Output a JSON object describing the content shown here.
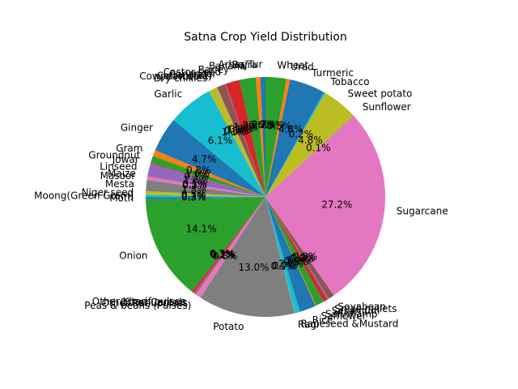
{
  "chart_data": {
    "type": "pie",
    "title": "Satna Crop Yield Distribution",
    "start_angle_deg": 90,
    "direction": "counterclockwise",
    "pct_format": "%1.1f%%",
    "slices": [
      {
        "label": "Arhar/Tur",
        "value": 0.7,
        "color": "#1f77b4"
      },
      {
        "label": "Bajra",
        "value": 0.6,
        "color": "#ff7f0e"
      },
      {
        "label": "Banana",
        "value": 2.2,
        "color": "#2ca02c"
      },
      {
        "label": "Barley",
        "value": 1.9,
        "color": "#d62728"
      },
      {
        "label": "Castor seed",
        "value": 0.1,
        "color": "#9467bd"
      },
      {
        "label": "Coriander",
        "value": 1.1,
        "color": "#8c564b"
      },
      {
        "label": "Cotton(lint)",
        "value": 0.05,
        "color": "#e377c2"
      },
      {
        "label": "Cowpea(Lobia)",
        "value": 0.05,
        "color": "#7f7f7f"
      },
      {
        "label": "Dry chillies",
        "value": 1.1,
        "color": "#bcbd22"
      },
      {
        "label": "Garlic",
        "value": 6.1,
        "color": "#17becf"
      },
      {
        "label": "Ginger",
        "value": 4.7,
        "color": "#1f77b4"
      },
      {
        "label": "Gram",
        "value": 0.8,
        "color": "#ff7f0e"
      },
      {
        "label": "Groundnut",
        "value": 1.0,
        "color": "#2ca02c"
      },
      {
        "label": "Jowar",
        "value": 0.1,
        "color": "#d62728"
      },
      {
        "label": "Linseed",
        "value": 1.6,
        "color": "#9467bd"
      },
      {
        "label": "Maize",
        "value": 0.1,
        "color": "#8c564b"
      },
      {
        "label": "Masoor",
        "value": 0.5,
        "color": "#e377c2"
      },
      {
        "label": "Mesta",
        "value": 1.5,
        "color": "#7f7f7f"
      },
      {
        "label": "Niger seed",
        "value": 0.5,
        "color": "#bcbd22"
      },
      {
        "label": "Moong(Green Gram)",
        "value": 0.3,
        "color": "#17becf"
      },
      {
        "label": "Moth",
        "value": 0.3,
        "color": "#1f77b4"
      },
      {
        "label": "Onion",
        "value": 14.1,
        "color": "#2ca02c"
      },
      {
        "label": "Other Kharif pulses",
        "value": 0.3,
        "color": "#d62728"
      },
      {
        "label": "Other Cereals",
        "value": 0.1,
        "color": "#9467bd"
      },
      {
        "label": "Other Rabi pulses",
        "value": 0.2,
        "color": "#8c564b"
      },
      {
        "label": "Peas & beans (Pulses)",
        "value": 0.8,
        "color": "#e377c2"
      },
      {
        "label": "Potato",
        "value": 13.0,
        "color": "#7f7f7f"
      },
      {
        "label": "Ragi",
        "value": 0.05,
        "color": "#bcbd22"
      },
      {
        "label": "Rapeseed &Mustard",
        "value": 0.7,
        "color": "#17becf"
      },
      {
        "label": "Rice",
        "value": 2.2,
        "color": "#1f77b4"
      },
      {
        "label": "Safflower",
        "value": 0.1,
        "color": "#ff7f0e"
      },
      {
        "label": "Sannhamp",
        "value": 1.1,
        "color": "#2ca02c"
      },
      {
        "label": "Sesamum",
        "value": 0.6,
        "color": "#d62728"
      },
      {
        "label": "Small millets",
        "value": 0.2,
        "color": "#9467bd"
      },
      {
        "label": "Soyabean",
        "value": 0.8,
        "color": "#8c564b"
      },
      {
        "label": "Sugarcane",
        "value": 27.1,
        "color": "#e377c2"
      },
      {
        "label": "Sunflower",
        "value": 0.05,
        "color": "#7f7f7f"
      },
      {
        "label": "Sweet potato",
        "value": 4.8,
        "color": "#bcbd22"
      },
      {
        "label": "Tobacco",
        "value": 0.2,
        "color": "#17becf"
      },
      {
        "label": "Turmeric",
        "value": 4.8,
        "color": "#1f77b4"
      },
      {
        "label": "Urad",
        "value": 0.5,
        "color": "#ff7f0e"
      },
      {
        "label": "Wheat",
        "value": 2.8,
        "color": "#2ca02c"
      }
    ]
  }
}
